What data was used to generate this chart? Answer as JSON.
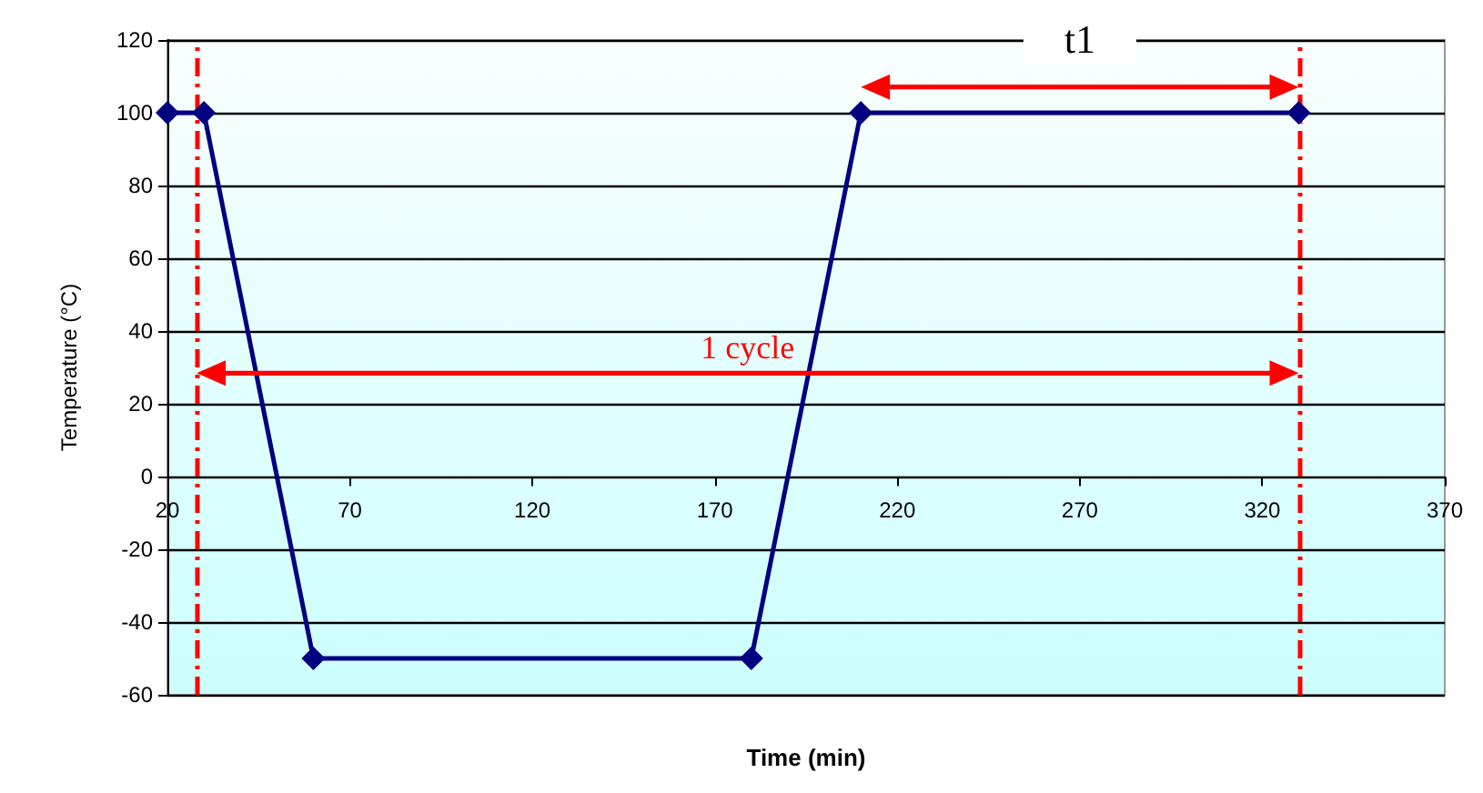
{
  "chart_data": {
    "type": "line",
    "xlabel": "Time (min)",
    "ylabel": "Temperature (°C)",
    "x": [
      20,
      30,
      60,
      180,
      210,
      330
    ],
    "series": [
      {
        "color": "#000080",
        "values": [
          100,
          100,
          -50,
          -50,
          100,
          100
        ]
      }
    ],
    "xlim": [
      20,
      370
    ],
    "xticks": [
      20,
      70,
      120,
      170,
      220,
      270,
      320,
      370
    ],
    "ylim": [
      -60,
      120
    ],
    "yticks": [
      -60,
      -40,
      -20,
      0,
      20,
      40,
      60,
      80,
      100,
      120
    ],
    "grid": "y",
    "marker": "diamond",
    "line_style": "solid",
    "ref_lines": [
      {
        "axis": "x",
        "value": 28,
        "color": "#ff0000",
        "line_style": "dashed"
      },
      {
        "axis": "x",
        "value": 330,
        "color": "#ff0000",
        "line_style": "dashed"
      }
    ],
    "annotations": [
      "1 cycle",
      "t1"
    ]
  }
}
